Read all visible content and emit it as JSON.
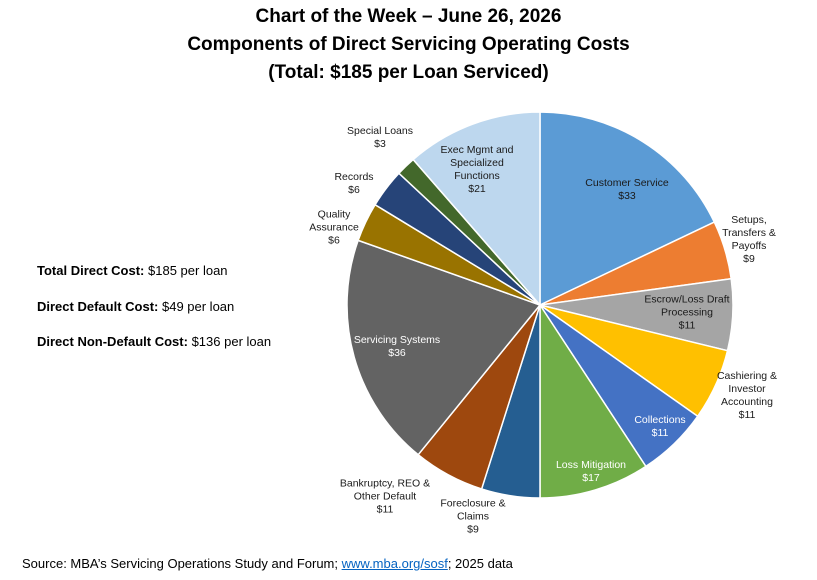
{
  "chart_data": {
    "type": "pie",
    "title": "Chart of the Week – June 26, 2026",
    "subtitle": "Components of Direct Servicing Operating Costs",
    "total_note": "(Total: $185 per Loan Serviced)",
    "categories": [
      "Customer Service",
      "Setups, Transfers & Payoffs",
      "Escrow/Loss Draft Processing",
      "Cashiering & Investor Accounting",
      "Collections",
      "Loss Mitigation",
      "Foreclosure & Claims",
      "Bankruptcy, REO & Other Default",
      "Servicing Systems",
      "Quality Assurance",
      "Records",
      "Special Loans",
      "Exec Mgmt and Specialized Functions"
    ],
    "values": [
      33,
      9,
      11,
      11,
      11,
      17,
      9,
      11,
      36,
      6,
      6,
      3,
      21
    ],
    "value_labels": [
      "$33",
      "$9",
      "$11",
      "$11",
      "$11",
      "$17",
      "$9",
      "$11",
      "$36",
      "$6",
      "$6",
      "$3",
      "$21"
    ],
    "colors": [
      "#5b9bd5",
      "#ed7d31",
      "#a5a5a5",
      "#ffc000",
      "#4472c4",
      "#70ad47",
      "#255e91",
      "#9e480e",
      "#636363",
      "#997300",
      "#264478",
      "#43682b",
      "#bdd7ee"
    ],
    "notes": [
      {
        "label": "Total Direct Cost:",
        "text": "$185 per loan"
      },
      {
        "label": "Direct Default Cost:",
        "text": "$49 per loan"
      },
      {
        "label": "Direct Non-Default Cost:",
        "text": "$136 per loan"
      }
    ],
    "source": {
      "prefix": "Source: MBA’s Servicing Operations Study and Forum;",
      "link": "www.mba.org/sosf",
      "suffix": "; 2025 data"
    }
  }
}
